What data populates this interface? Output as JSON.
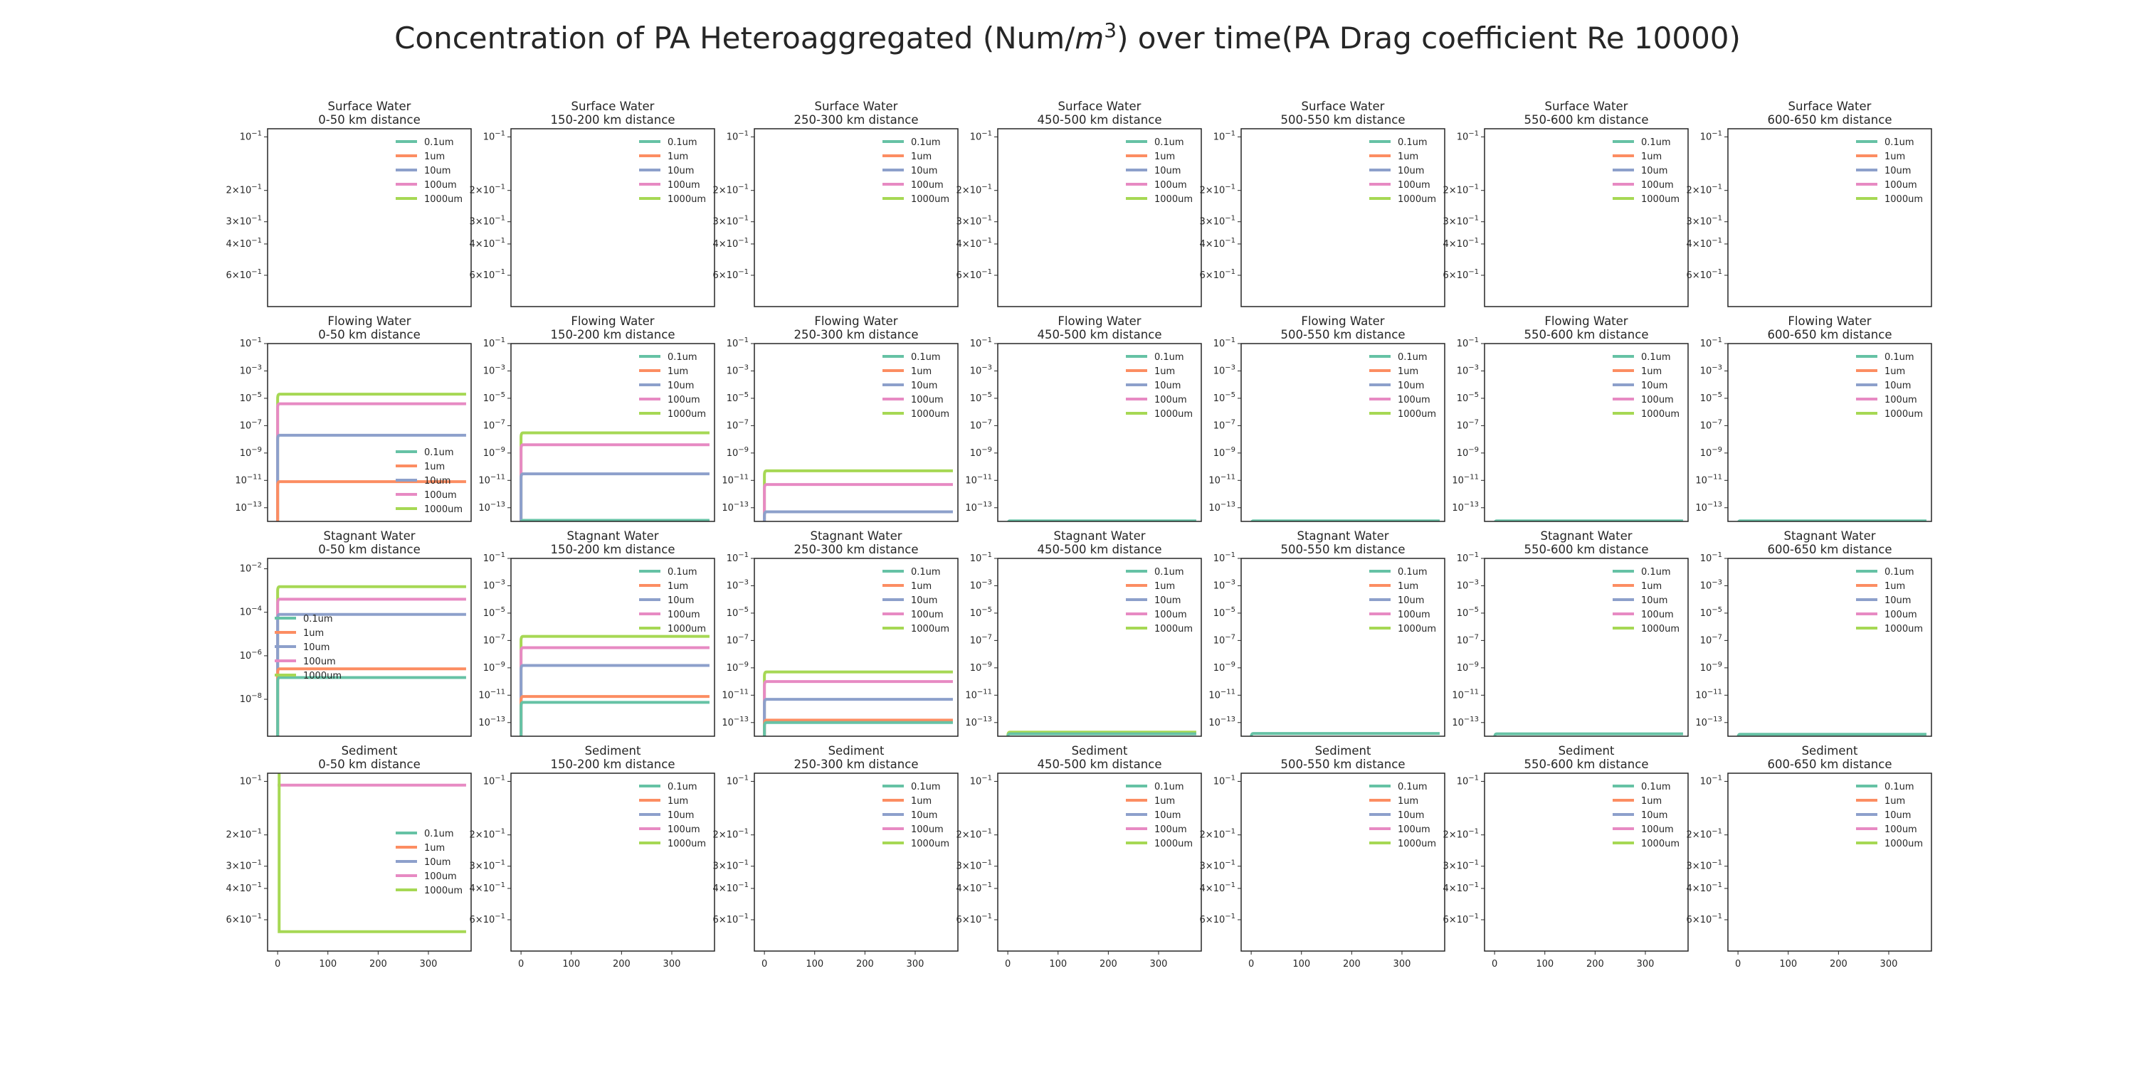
{
  "chart_data": {
    "type": "line",
    "title": "Concentration of PA Heteroaggregated (Num/m³) over time(PA Drag coefficient Re 10000)",
    "title_parts": {
      "before": "Concentration of PA Heteroaggregated (Num/",
      "m": "m",
      "exp": "3",
      "after": ") over time(PA Drag coefficient Re 10000)"
    },
    "compartments": [
      "Surface Water",
      "Flowing Water",
      "Stagnant Water",
      "Sediment"
    ],
    "distances": [
      "0-50 km distance",
      "150-200 km distance",
      "250-300 km distance",
      "450-500 km distance",
      "500-550 km distance",
      "550-600 km distance",
      "600-650 km distance"
    ],
    "x_ticks": [
      "0",
      "100",
      "200",
      "300"
    ],
    "xlim": [
      -20,
      385
    ],
    "series_names": [
      "0.1um",
      "1um",
      "10um",
      "100um",
      "1000um"
    ],
    "series_colors": [
      "#66c2a5",
      "#fc8d62",
      "#8da0cb",
      "#e78ac3",
      "#a6d854"
    ],
    "surface_yticks": [
      {
        "base": "10",
        "exp": "−1",
        "v": 0.1
      },
      {
        "mant": "2",
        "base": "10",
        "exp": "−1",
        "v": 0.2
      },
      {
        "mant": "3",
        "base": "10",
        "exp": "−1",
        "v": 0.3
      },
      {
        "mant": "4",
        "base": "10",
        "exp": "−1",
        "v": 0.4
      },
      {
        "mant": "6",
        "base": "10",
        "exp": "−1",
        "v": 0.6
      }
    ],
    "rows": [
      {
        "compartment": "Surface Water",
        "scale": "log-inverted",
        "panels": [
          {
            "legend": "top-right",
            "series": []
          },
          {
            "legend": "top-right",
            "series": []
          },
          {
            "legend": "top-right",
            "series": []
          },
          {
            "legend": "top-right",
            "series": []
          },
          {
            "legend": "top-right",
            "series": []
          },
          {
            "legend": "top-right",
            "series": []
          },
          {
            "legend": "top-right",
            "series": []
          }
        ]
      },
      {
        "compartment": "Flowing Water",
        "scale": "log",
        "ylim": [
          1e-14,
          0.1
        ],
        "yticks": [
          {
            "base": "10",
            "exp": "−1",
            "v": 0.1
          },
          {
            "base": "10",
            "exp": "−3",
            "v": 0.001
          },
          {
            "base": "10",
            "exp": "−5",
            "v": 1e-05
          },
          {
            "base": "10",
            "exp": "−7",
            "v": 1e-07
          },
          {
            "base": "10",
            "exp": "−9",
            "v": 1e-09
          },
          {
            "base": "10",
            "exp": "−11",
            "v": 1e-11
          },
          {
            "base": "10",
            "exp": "−13",
            "v": 1e-13
          }
        ],
        "panels": [
          {
            "legend": "lower-right",
            "series": [
              {
                "name": "1000um",
                "value": 2e-05
              },
              {
                "name": "100um",
                "value": 4e-06
              },
              {
                "name": "10um",
                "value": 2e-08
              },
              {
                "name": "1um",
                "value": 8e-12
              }
            ]
          },
          {
            "legend": "top-right",
            "series": [
              {
                "name": "1000um",
                "value": 3e-08
              },
              {
                "name": "100um",
                "value": 4e-09
              },
              {
                "name": "10um",
                "value": 3e-11
              },
              {
                "name": "0.1um",
                "value": 1.2e-14
              }
            ]
          },
          {
            "legend": "top-right",
            "series": [
              {
                "name": "1000um",
                "value": 5e-11
              },
              {
                "name": "100um",
                "value": 5e-12
              },
              {
                "name": "10um",
                "value": 5e-14
              }
            ]
          },
          {
            "legend": "top-right",
            "series": [
              {
                "name": "0.1um",
                "value": 1.1e-14
              }
            ]
          },
          {
            "legend": "top-right",
            "series": [
              {
                "name": "0.1um",
                "value": 1.1e-14
              }
            ]
          },
          {
            "legend": "top-right",
            "series": [
              {
                "name": "0.1um",
                "value": 1.1e-14
              }
            ]
          },
          {
            "legend": "top-right",
            "series": [
              {
                "name": "0.1um",
                "value": 1.1e-14
              }
            ]
          }
        ]
      },
      {
        "compartment": "Stagnant Water",
        "panels": [
          {
            "scale": "log",
            "ylim": [
              2e-10,
              0.03
            ],
            "legend": "center-left",
            "yticks": [
              {
                "base": "10",
                "exp": "−2",
                "v": 0.01
              },
              {
                "base": "10",
                "exp": "−4",
                "v": 0.0001
              },
              {
                "base": "10",
                "exp": "−6",
                "v": 1e-06
              },
              {
                "base": "10",
                "exp": "−8",
                "v": 1e-08
              }
            ],
            "series": [
              {
                "name": "1000um",
                "value": 0.0015
              },
              {
                "name": "100um",
                "value": 0.0004
              },
              {
                "name": "10um",
                "value": 8e-05
              },
              {
                "name": "1um",
                "value": 2.5e-07
              },
              {
                "name": "0.1um",
                "value": 1e-07
              }
            ]
          },
          {
            "scale": "log",
            "ylim": [
              1e-14,
              0.1
            ],
            "legend": "top-right",
            "yticks": [
              {
                "base": "10",
                "exp": "−1",
                "v": 0.1
              },
              {
                "base": "10",
                "exp": "−3",
                "v": 0.001
              },
              {
                "base": "10",
                "exp": "−5",
                "v": 1e-05
              },
              {
                "base": "10",
                "exp": "−7",
                "v": 1e-07
              },
              {
                "base": "10",
                "exp": "−9",
                "v": 1e-09
              },
              {
                "base": "10",
                "exp": "−11",
                "v": 1e-11
              },
              {
                "base": "10",
                "exp": "−13",
                "v": 1e-13
              }
            ],
            "series": [
              {
                "name": "1000um",
                "value": 2e-07
              },
              {
                "name": "100um",
                "value": 3e-08
              },
              {
                "name": "10um",
                "value": 1.5e-09
              },
              {
                "name": "1um",
                "value": 8e-12
              },
              {
                "name": "0.1um",
                "value": 3e-12
              }
            ]
          },
          {
            "scale": "log",
            "ylim": [
              1e-14,
              0.1
            ],
            "legend": "top-right",
            "yticks": [
              {
                "base": "10",
                "exp": "−1",
                "v": 0.1
              },
              {
                "base": "10",
                "exp": "−3",
                "v": 0.001
              },
              {
                "base": "10",
                "exp": "−5",
                "v": 1e-05
              },
              {
                "base": "10",
                "exp": "−7",
                "v": 1e-07
              },
              {
                "base": "10",
                "exp": "−9",
                "v": 1e-09
              },
              {
                "base": "10",
                "exp": "−11",
                "v": 1e-11
              },
              {
                "base": "10",
                "exp": "−13",
                "v": 1e-13
              }
            ],
            "series": [
              {
                "name": "1000um",
                "value": 5e-10
              },
              {
                "name": "100um",
                "value": 1e-10
              },
              {
                "name": "10um",
                "value": 5e-12
              },
              {
                "name": "1um",
                "value": 1.5e-13
              },
              {
                "name": "0.1um",
                "value": 1e-13
              }
            ]
          },
          {
            "scale": "log",
            "ylim": [
              1e-14,
              0.1
            ],
            "legend": "top-right",
            "yticks": [
              {
                "base": "10",
                "exp": "−1",
                "v": 0.1
              },
              {
                "base": "10",
                "exp": "−3",
                "v": 0.001
              },
              {
                "base": "10",
                "exp": "−5",
                "v": 1e-05
              },
              {
                "base": "10",
                "exp": "−7",
                "v": 1e-07
              },
              {
                "base": "10",
                "exp": "−9",
                "v": 1e-09
              },
              {
                "base": "10",
                "exp": "−11",
                "v": 1e-11
              },
              {
                "base": "10",
                "exp": "−13",
                "v": 1e-13
              }
            ],
            "series": [
              {
                "name": "1000um",
                "value": 2e-14
              },
              {
                "name": "0.1um",
                "value": 1.5e-14
              }
            ]
          },
          {
            "scale": "log",
            "ylim": [
              1e-14,
              0.1
            ],
            "legend": "top-right",
            "yticks": [
              {
                "base": "10",
                "exp": "−1",
                "v": 0.1
              },
              {
                "base": "10",
                "exp": "−3",
                "v": 0.001
              },
              {
                "base": "10",
                "exp": "−5",
                "v": 1e-05
              },
              {
                "base": "10",
                "exp": "−7",
                "v": 1e-07
              },
              {
                "base": "10",
                "exp": "−9",
                "v": 1e-09
              },
              {
                "base": "10",
                "exp": "−11",
                "v": 1e-11
              },
              {
                "base": "10",
                "exp": "−13",
                "v": 1e-13
              }
            ],
            "series": [
              {
                "name": "0.1um",
                "value": 1.6e-14
              }
            ]
          },
          {
            "scale": "log",
            "ylim": [
              1e-14,
              0.1
            ],
            "legend": "top-right",
            "yticks": [
              {
                "base": "10",
                "exp": "−1",
                "v": 0.1
              },
              {
                "base": "10",
                "exp": "−3",
                "v": 0.001
              },
              {
                "base": "10",
                "exp": "−5",
                "v": 1e-05
              },
              {
                "base": "10",
                "exp": "−7",
                "v": 1e-07
              },
              {
                "base": "10",
                "exp": "−9",
                "v": 1e-09
              },
              {
                "base": "10",
                "exp": "−11",
                "v": 1e-11
              },
              {
                "base": "10",
                "exp": "−13",
                "v": 1e-13
              }
            ],
            "series": [
              {
                "name": "0.1um",
                "value": 1.5e-14
              }
            ]
          },
          {
            "scale": "log",
            "ylim": [
              1e-14,
              0.1
            ],
            "legend": "top-right",
            "yticks": [
              {
                "base": "10",
                "exp": "−1",
                "v": 0.1
              },
              {
                "base": "10",
                "exp": "−3",
                "v": 0.001
              },
              {
                "base": "10",
                "exp": "−5",
                "v": 1e-05
              },
              {
                "base": "10",
                "exp": "−7",
                "v": 1e-07
              },
              {
                "base": "10",
                "exp": "−9",
                "v": 1e-09
              },
              {
                "base": "10",
                "exp": "−11",
                "v": 1e-11
              },
              {
                "base": "10",
                "exp": "−13",
                "v": 1e-13
              }
            ],
            "series": [
              {
                "name": "0.1um",
                "value": 1.4e-14
              }
            ]
          }
        ]
      },
      {
        "compartment": "Sediment",
        "scale": "log-inverted",
        "panels": [
          {
            "legend": "center-right",
            "series": [
              {
                "name": "100um",
                "value": 0.105
              },
              {
                "name": "1000um",
                "value": 0.7
              }
            ],
            "spike_at": 3
          },
          {
            "legend": "top-right",
            "series": []
          },
          {
            "legend": "top-right",
            "series": []
          },
          {
            "legend": "top-right",
            "series": []
          },
          {
            "legend": "top-right",
            "series": []
          },
          {
            "legend": "top-right",
            "series": []
          },
          {
            "legend": "top-right",
            "series": []
          }
        ]
      }
    ]
  }
}
